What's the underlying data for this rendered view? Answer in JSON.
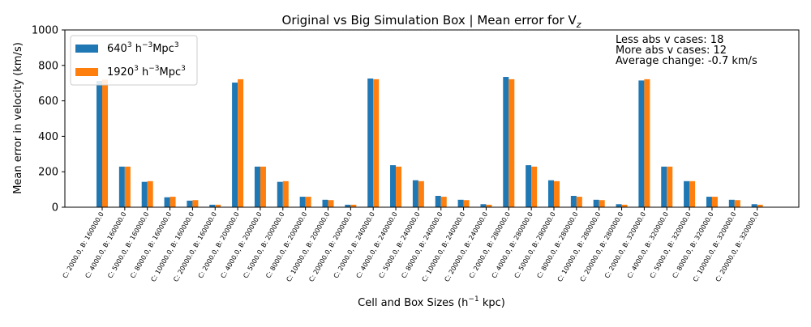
{
  "chart_data": {
    "type": "bar",
    "title": "Original vs Big Simulation Box | Mean error for V",
    "title_subscript": "z",
    "xlabel": "Cell and Box Sizes (h",
    "xlabel_sup": "−1",
    "xlabel_tail": " kpc)",
    "ylabel": "Mean error in velocity (km/s)",
    "ylim": [
      0,
      1000
    ],
    "yticks": [
      0,
      200,
      400,
      600,
      800,
      1000
    ],
    "grid": false,
    "legend_position": "top-left",
    "categories": [
      "C: 2000.0, B: 160000.0",
      "C: 4000.0, B: 160000.0",
      "C: 5000.0, B: 160000.0",
      "C: 8000.0, B: 160000.0",
      "C: 10000.0, B: 160000.0",
      "C: 20000.0, B: 160000.0",
      "C: 2000.0, B: 200000.0",
      "C: 4000.0, B: 200000.0",
      "C: 5000.0, B: 200000.0",
      "C: 8000.0, B: 200000.0",
      "C: 10000.0, B: 200000.0",
      "C: 20000.0, B: 200000.0",
      "C: 2000.0, B: 240000.0",
      "C: 4000.0, B: 240000.0",
      "C: 5000.0, B: 240000.0",
      "C: 8000.0, B: 240000.0",
      "C: 10000.0, B: 240000.0",
      "C: 20000.0, B: 240000.0",
      "C: 2000.0, B: 280000.0",
      "C: 4000.0, B: 280000.0",
      "C: 5000.0, B: 280000.0",
      "C: 8000.0, B: 280000.0",
      "C: 10000.0, B: 280000.0",
      "C: 20000.0, B: 280000.0",
      "C: 2000.0, B: 320000.0",
      "C: 4000.0, B: 320000.0",
      "C: 5000.0, B: 320000.0",
      "C: 8000.0, B: 320000.0",
      "C: 10000.0, B: 320000.0",
      "C: 20000.0, B: 320000.0"
    ],
    "series": [
      {
        "name": "640",
        "name_sup": "3",
        "name_unit": " h",
        "name_unit_sup": "−3",
        "name_tail": "Mpc",
        "name_tail_sup": "3",
        "color": "#1f77b4",
        "values": [
          712,
          229,
          143,
          56,
          37,
          14,
          703,
          229,
          143,
          59,
          42,
          14,
          726,
          237,
          152,
          64,
          42,
          17,
          735,
          237,
          152,
          64,
          42,
          17,
          715,
          229,
          147,
          59,
          42,
          17
        ]
      },
      {
        "name": "1920",
        "name_sup": "3",
        "name_unit": " h",
        "name_unit_sup": "−3",
        "name_tail": "Mpc",
        "name_tail_sup": "3",
        "color": "#ff7f0e",
        "values": [
          720,
          229,
          147,
          59,
          40,
          14,
          722,
          229,
          147,
          59,
          40,
          14,
          722,
          229,
          147,
          59,
          40,
          14,
          722,
          229,
          147,
          59,
          40,
          14,
          722,
          229,
          147,
          59,
          40,
          14
        ]
      }
    ],
    "annotations": [
      "Less abs v cases: 18",
      "More abs v cases: 12",
      "Average change: -0.7 km/s"
    ]
  }
}
